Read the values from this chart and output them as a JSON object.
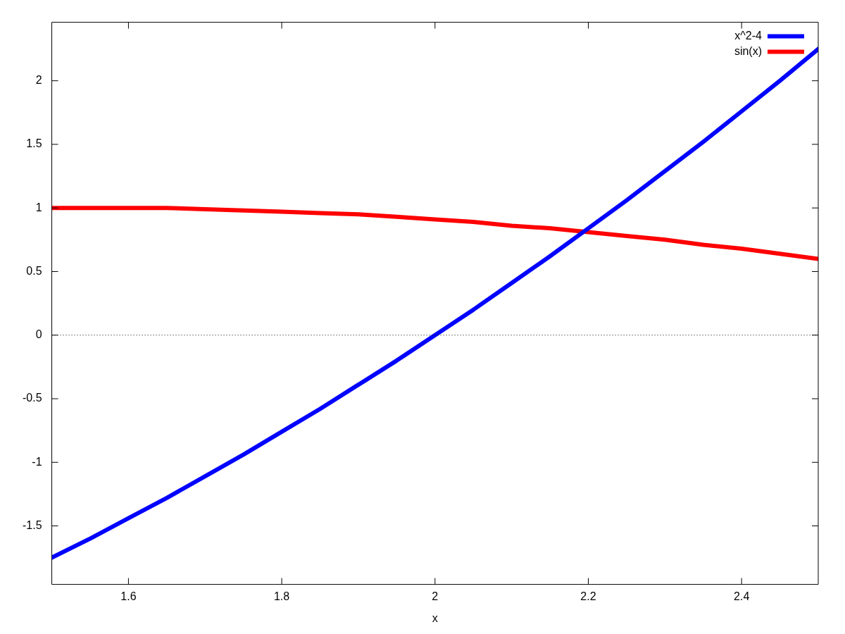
{
  "chart_data": {
    "type": "line",
    "xlabel": "x",
    "x": [
      1.5,
      1.55,
      1.6,
      1.65,
      1.7,
      1.75,
      1.8,
      1.85,
      1.9,
      1.95,
      2,
      2.05,
      2.1,
      2.15,
      2.2,
      2.25,
      2.3,
      2.35,
      2.4,
      2.45,
      2.5
    ],
    "series": [
      {
        "name": "x^2-4",
        "color": "#0000ff",
        "values": [
          -1.75,
          -1.6,
          -1.44,
          -1.28,
          -1.11,
          -0.94,
          -0.76,
          -0.58,
          -0.39,
          -0.2,
          0,
          0.2,
          0.41,
          0.62,
          0.84,
          1.06,
          1.29,
          1.52,
          1.76,
          2.0,
          2.25
        ]
      },
      {
        "name": "sin(x)",
        "color": "#ff0000",
        "values": [
          1.0,
          1.0,
          1.0,
          1.0,
          0.99,
          0.98,
          0.97,
          0.96,
          0.95,
          0.93,
          0.91,
          0.89,
          0.86,
          0.84,
          0.81,
          0.78,
          0.75,
          0.71,
          0.68,
          0.64,
          0.6
        ]
      }
    ],
    "xlim": [
      1.5,
      2.5
    ],
    "xticks": [
      1.6,
      1.8,
      2,
      2.2,
      2.4
    ],
    "ylim": [
      -1.96,
      2.46
    ],
    "yticks": [
      -1.5,
      -1,
      -0.5,
      0,
      0.5,
      1,
      1.5,
      2
    ],
    "ref_lines": [
      {
        "axis": "y",
        "value": 0,
        "line_style": "dotted",
        "color": "#000000"
      }
    ],
    "legend": "top right",
    "marker": "none",
    "line_style": "solid",
    "grid": false
  }
}
